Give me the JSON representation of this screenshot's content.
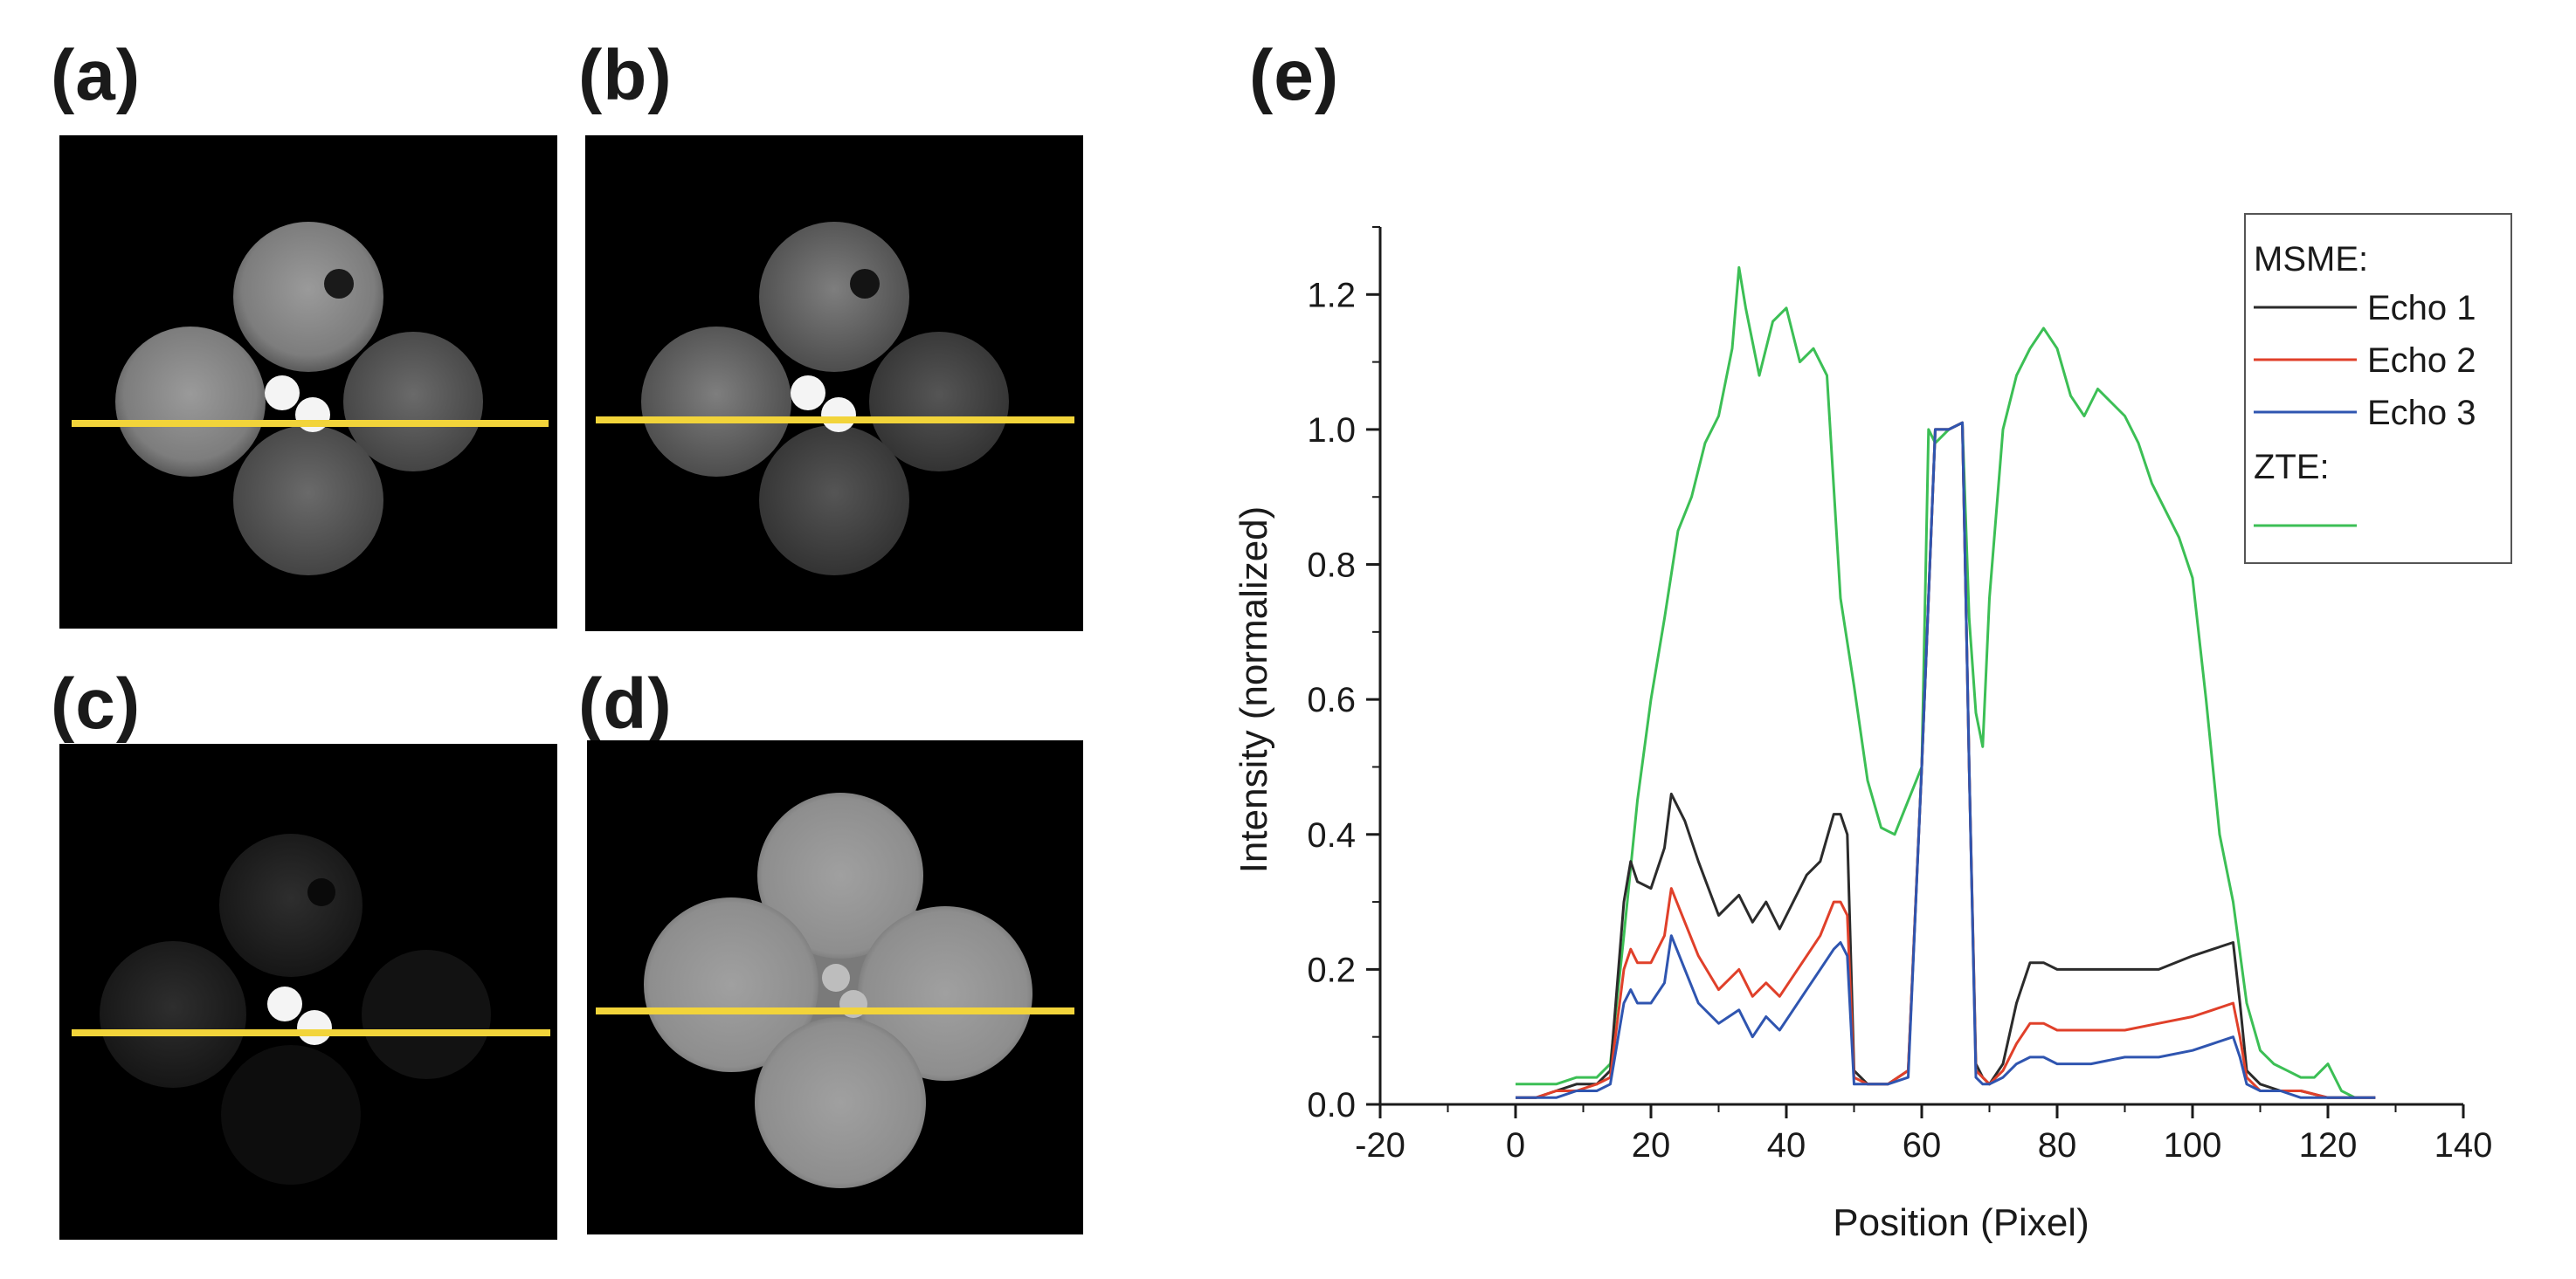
{
  "panels": [
    {
      "id": "a",
      "label": "(a)",
      "caption_letter": "a"
    },
    {
      "id": "b",
      "label": "(b)",
      "caption_letter": "b"
    },
    {
      "id": "c",
      "label": "(c)",
      "caption_letter": "c"
    },
    {
      "id": "d",
      "label": "(d)",
      "caption_letter": "d"
    },
    {
      "id": "e",
      "label": "(e)",
      "caption_letter": "e"
    }
  ],
  "colors": {
    "profile_line": "#f2d43a",
    "echo1": "#2b2b2b",
    "echo2": "#e0402a",
    "echo3": "#2f55b0",
    "zte": "#3cbf55"
  },
  "chart_data": {
    "type": "line",
    "xlabel": "Position (Pixel)",
    "ylabel": "Intensity (normalized)",
    "xlim": [
      -20,
      140
    ],
    "ylim": [
      0,
      1.3
    ],
    "xticks": [
      -20,
      0,
      20,
      40,
      60,
      80,
      100,
      120,
      140
    ],
    "yticks": [
      0.0,
      0.2,
      0.4,
      0.6,
      0.8,
      1.0,
      1.2
    ],
    "xtick_labels": [
      "-20",
      "0",
      "20",
      "40",
      "60",
      "80",
      "100",
      "120",
      "140"
    ],
    "ytick_labels": [
      "0.0",
      "0.2",
      "0.4",
      "0.6",
      "0.8",
      "1.0",
      "1.2"
    ],
    "legend": {
      "group1": "MSME:",
      "group2": "ZTE:",
      "entries": [
        "Echo 1",
        "Echo 2",
        "Echo 3",
        ""
      ],
      "placement": "top-right"
    },
    "series": [
      {
        "name": "Echo 1",
        "group": "MSME",
        "x": [
          0,
          3,
          6,
          9,
          12,
          14,
          16,
          17,
          18,
          20,
          22,
          23,
          25,
          27,
          30,
          33,
          35,
          37,
          39,
          41,
          43,
          45,
          47,
          48,
          49,
          50,
          52,
          55,
          58,
          60,
          62,
          64,
          66,
          67,
          68,
          69,
          70,
          72,
          74,
          76,
          78,
          80,
          85,
          90,
          95,
          100,
          103,
          106,
          107,
          108,
          110,
          113,
          116,
          120,
          124,
          127
        ],
        "y": [
          0.01,
          0.01,
          0.02,
          0.03,
          0.03,
          0.05,
          0.3,
          0.36,
          0.33,
          0.32,
          0.38,
          0.46,
          0.42,
          0.36,
          0.28,
          0.31,
          0.27,
          0.3,
          0.26,
          0.3,
          0.34,
          0.36,
          0.43,
          0.43,
          0.4,
          0.05,
          0.03,
          0.03,
          0.05,
          0.5,
          1.0,
          1.0,
          1.01,
          0.5,
          0.06,
          0.04,
          0.03,
          0.06,
          0.15,
          0.21,
          0.21,
          0.2,
          0.2,
          0.2,
          0.2,
          0.22,
          0.23,
          0.24,
          0.15,
          0.05,
          0.03,
          0.02,
          0.02,
          0.01,
          0.01,
          0.01
        ]
      },
      {
        "name": "Echo 2",
        "group": "MSME",
        "x": [
          0,
          3,
          6,
          9,
          12,
          14,
          16,
          17,
          18,
          20,
          22,
          23,
          25,
          27,
          30,
          33,
          35,
          37,
          39,
          41,
          43,
          45,
          47,
          48,
          49,
          50,
          52,
          55,
          58,
          60,
          62,
          64,
          66,
          67,
          68,
          69,
          70,
          72,
          74,
          76,
          78,
          80,
          85,
          90,
          95,
          100,
          103,
          106,
          107,
          108,
          110,
          113,
          116,
          120,
          124,
          127
        ],
        "y": [
          0.01,
          0.01,
          0.02,
          0.02,
          0.03,
          0.04,
          0.2,
          0.23,
          0.21,
          0.21,
          0.25,
          0.32,
          0.27,
          0.22,
          0.17,
          0.2,
          0.16,
          0.18,
          0.16,
          0.19,
          0.22,
          0.25,
          0.3,
          0.3,
          0.28,
          0.04,
          0.03,
          0.03,
          0.05,
          0.5,
          1.0,
          1.0,
          1.01,
          0.5,
          0.05,
          0.04,
          0.03,
          0.05,
          0.09,
          0.12,
          0.12,
          0.11,
          0.11,
          0.11,
          0.12,
          0.13,
          0.14,
          0.15,
          0.1,
          0.04,
          0.02,
          0.02,
          0.02,
          0.01,
          0.01,
          0.01
        ]
      },
      {
        "name": "Echo 3",
        "group": "MSME",
        "x": [
          0,
          3,
          6,
          9,
          12,
          14,
          16,
          17,
          18,
          20,
          22,
          23,
          25,
          27,
          30,
          33,
          35,
          37,
          39,
          41,
          43,
          45,
          47,
          48,
          49,
          50,
          52,
          55,
          58,
          60,
          62,
          64,
          66,
          67,
          68,
          69,
          70,
          72,
          74,
          76,
          78,
          80,
          85,
          90,
          95,
          100,
          103,
          106,
          107,
          108,
          110,
          113,
          116,
          120,
          124,
          127
        ],
        "y": [
          0.01,
          0.01,
          0.01,
          0.02,
          0.02,
          0.03,
          0.15,
          0.17,
          0.15,
          0.15,
          0.18,
          0.25,
          0.2,
          0.15,
          0.12,
          0.14,
          0.1,
          0.13,
          0.11,
          0.14,
          0.17,
          0.2,
          0.23,
          0.24,
          0.22,
          0.03,
          0.03,
          0.03,
          0.04,
          0.5,
          1.0,
          1.0,
          1.01,
          0.5,
          0.04,
          0.03,
          0.03,
          0.04,
          0.06,
          0.07,
          0.07,
          0.06,
          0.06,
          0.07,
          0.07,
          0.08,
          0.09,
          0.1,
          0.07,
          0.03,
          0.02,
          0.02,
          0.01,
          0.01,
          0.01,
          0.01
        ]
      },
      {
        "name": "ZTE",
        "group": "ZTE",
        "x": [
          0,
          3,
          6,
          9,
          12,
          14,
          16,
          18,
          20,
          22,
          24,
          26,
          28,
          30,
          32,
          33,
          34,
          36,
          38,
          40,
          42,
          44,
          46,
          48,
          50,
          52,
          54,
          56,
          58,
          60,
          61,
          62,
          64,
          66,
          67,
          68,
          69,
          70,
          72,
          74,
          76,
          78,
          80,
          82,
          84,
          86,
          88,
          90,
          92,
          94,
          96,
          98,
          100,
          102,
          104,
          106,
          108,
          110,
          112,
          114,
          116,
          118,
          120,
          122,
          124
        ],
        "y": [
          0.03,
          0.03,
          0.03,
          0.04,
          0.04,
          0.06,
          0.25,
          0.45,
          0.6,
          0.72,
          0.85,
          0.9,
          0.98,
          1.02,
          1.12,
          1.24,
          1.18,
          1.08,
          1.16,
          1.18,
          1.1,
          1.12,
          1.08,
          0.75,
          0.62,
          0.48,
          0.41,
          0.4,
          0.45,
          0.5,
          1.0,
          0.98,
          1.0,
          1.01,
          0.72,
          0.58,
          0.53,
          0.75,
          1.0,
          1.08,
          1.12,
          1.15,
          1.12,
          1.05,
          1.02,
          1.06,
          1.04,
          1.02,
          0.98,
          0.92,
          0.88,
          0.84,
          0.78,
          0.6,
          0.4,
          0.3,
          0.15,
          0.08,
          0.06,
          0.05,
          0.04,
          0.04,
          0.06,
          0.02,
          0.01
        ]
      }
    ]
  }
}
